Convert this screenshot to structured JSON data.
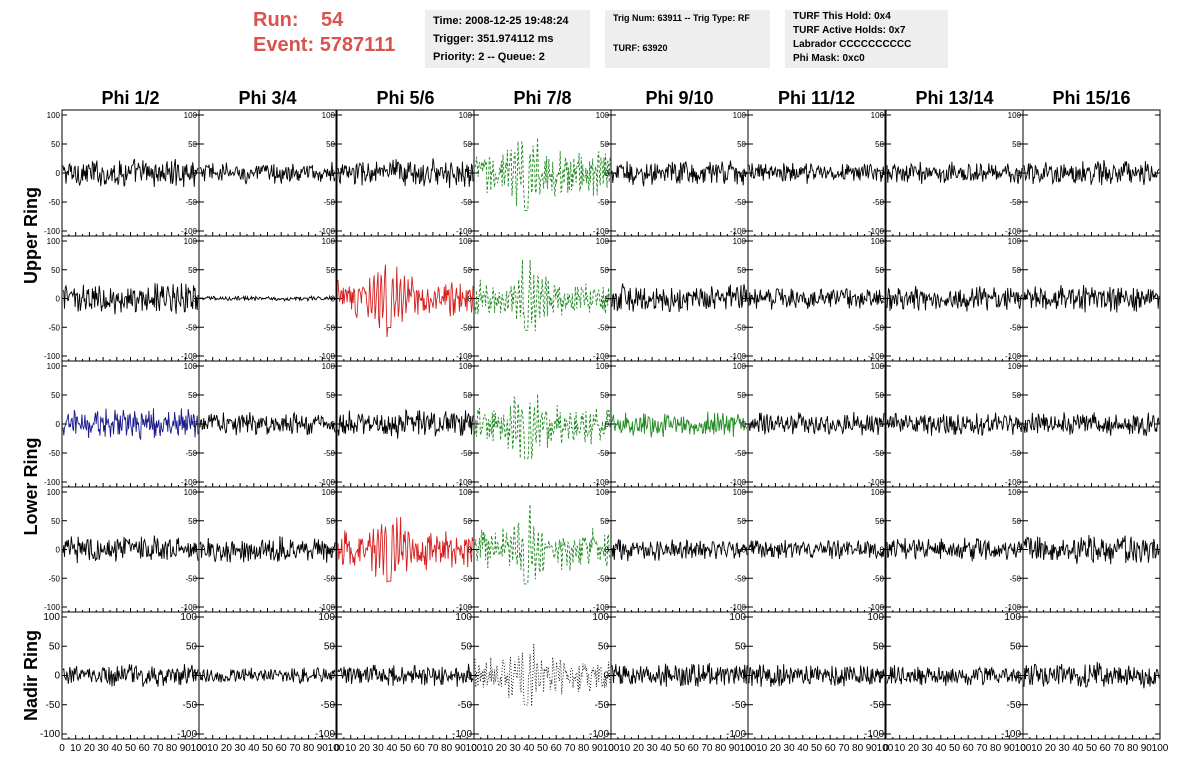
{
  "header": {
    "run_label": "Run:",
    "run_value": "54",
    "event_label": "Event:",
    "event_value": "5787111"
  },
  "info_boxes": {
    "time": "Time: 2008-12-25 19:48:24",
    "trigger": "Trigger: 351.974112 ms",
    "priority": "Priority: 2 -- Queue: 2",
    "trig_num": "Trig Num: 63911 -- Trig Type: RF",
    "turf": "TURF: 63920",
    "turf_hold": "TURF This Hold: 0x4",
    "turf_active": "TURF Active Holds: 0x7",
    "labrador": "Labrador CCCCCCCCCC",
    "phi_mask": "Phi Mask: 0xc0"
  },
  "chart_data": {
    "type": "line",
    "columns": [
      "Phi 1/2",
      "Phi 3/4",
      "Phi 5/6",
      "Phi 7/8",
      "Phi 9/10",
      "Phi 11/12",
      "Phi 13/14",
      "Phi 15/16"
    ],
    "row_groups": [
      {
        "label": "Upper Ring",
        "rows": [
          0,
          1
        ]
      },
      {
        "label": "Lower Ring",
        "rows": [
          2,
          3
        ]
      },
      {
        "label": "Nadir Ring",
        "rows": [
          4
        ]
      }
    ],
    "ylim": [
      -100,
      100
    ],
    "xlim": [
      0,
      100
    ],
    "y_ticks": [
      100,
      50,
      0,
      -50,
      -100
    ],
    "y_tick_labels": [
      "100",
      "50",
      "0",
      "-50",
      "-100"
    ],
    "x_ticks": [
      0,
      10,
      20,
      30,
      40,
      50,
      60,
      70,
      80,
      90,
      100
    ],
    "x_tick_labels": [
      "0",
      "10",
      "20",
      "30",
      "40",
      "50",
      "60",
      "70",
      "80",
      "90",
      "100"
    ],
    "trace_colors": {
      "black": "#000000",
      "green": "#228b22",
      "red": "#d62020",
      "blue": "#1a1a8c"
    },
    "panels": [
      {
        "row": 0,
        "col": 0,
        "color": "black",
        "amp": 18,
        "style": "solid",
        "shape": "noise"
      },
      {
        "row": 0,
        "col": 1,
        "color": "black",
        "amp": 14,
        "style": "solid",
        "shape": "noise"
      },
      {
        "row": 0,
        "col": 2,
        "color": "black",
        "amp": 18,
        "style": "solid",
        "shape": "noise"
      },
      {
        "row": 0,
        "col": 3,
        "color": "green",
        "amp": 28,
        "style": "dashed",
        "shape": "pulse"
      },
      {
        "row": 0,
        "col": 4,
        "color": "black",
        "amp": 16,
        "style": "solid",
        "shape": "noise"
      },
      {
        "row": 0,
        "col": 5,
        "color": "black",
        "amp": 13,
        "style": "solid",
        "shape": "noise"
      },
      {
        "row": 0,
        "col": 6,
        "color": "black",
        "amp": 14,
        "style": "solid",
        "shape": "noise"
      },
      {
        "row": 0,
        "col": 7,
        "color": "black",
        "amp": 16,
        "style": "solid",
        "shape": "noise"
      },
      {
        "row": 1,
        "col": 0,
        "color": "black",
        "amp": 20,
        "style": "solid",
        "shape": "noise"
      },
      {
        "row": 1,
        "col": 1,
        "color": "black",
        "amp": 3,
        "style": "solid",
        "shape": "noise"
      },
      {
        "row": 1,
        "col": 2,
        "color": "red",
        "amp": 22,
        "style": "solid",
        "shape": "pulse"
      },
      {
        "row": 1,
        "col": 3,
        "color": "green",
        "amp": 24,
        "style": "dashed",
        "shape": "pulse"
      },
      {
        "row": 1,
        "col": 4,
        "color": "black",
        "amp": 18,
        "style": "solid",
        "shape": "noise"
      },
      {
        "row": 1,
        "col": 5,
        "color": "black",
        "amp": 14,
        "style": "solid",
        "shape": "noise"
      },
      {
        "row": 1,
        "col": 6,
        "color": "black",
        "amp": 16,
        "style": "solid",
        "shape": "noise"
      },
      {
        "row": 1,
        "col": 7,
        "color": "black",
        "amp": 18,
        "style": "solid",
        "shape": "noise"
      },
      {
        "row": 2,
        "col": 0,
        "color": "blue",
        "amp": 20,
        "style": "solid",
        "shape": "noise"
      },
      {
        "row": 2,
        "col": 1,
        "color": "black",
        "amp": 14,
        "style": "solid",
        "shape": "noise"
      },
      {
        "row": 2,
        "col": 2,
        "color": "black",
        "amp": 18,
        "style": "solid",
        "shape": "noise"
      },
      {
        "row": 2,
        "col": 3,
        "color": "green",
        "amp": 26,
        "style": "dashed",
        "shape": "pulse"
      },
      {
        "row": 2,
        "col": 4,
        "color": "green",
        "amp": 16,
        "style": "solid",
        "shape": "noise"
      },
      {
        "row": 2,
        "col": 5,
        "color": "black",
        "amp": 14,
        "style": "solid",
        "shape": "noise"
      },
      {
        "row": 2,
        "col": 6,
        "color": "black",
        "amp": 14,
        "style": "solid",
        "shape": "noise"
      },
      {
        "row": 2,
        "col": 7,
        "color": "black",
        "amp": 15,
        "style": "solid",
        "shape": "noise"
      },
      {
        "row": 3,
        "col": 0,
        "color": "black",
        "amp": 18,
        "style": "solid",
        "shape": "noise"
      },
      {
        "row": 3,
        "col": 1,
        "color": "black",
        "amp": 16,
        "style": "solid",
        "shape": "noise"
      },
      {
        "row": 3,
        "col": 2,
        "color": "red",
        "amp": 24,
        "style": "solid",
        "shape": "pulse"
      },
      {
        "row": 3,
        "col": 3,
        "color": "green",
        "amp": 26,
        "style": "dashed",
        "shape": "pulse"
      },
      {
        "row": 3,
        "col": 4,
        "color": "black",
        "amp": 14,
        "style": "solid",
        "shape": "noise"
      },
      {
        "row": 3,
        "col": 5,
        "color": "black",
        "amp": 13,
        "style": "solid",
        "shape": "noise"
      },
      {
        "row": 3,
        "col": 6,
        "color": "black",
        "amp": 14,
        "style": "solid",
        "shape": "noise"
      },
      {
        "row": 3,
        "col": 7,
        "color": "black",
        "amp": 18,
        "style": "solid",
        "shape": "noise"
      },
      {
        "row": 4,
        "col": 0,
        "color": "black",
        "amp": 14,
        "style": "solid",
        "shape": "noise"
      },
      {
        "row": 4,
        "col": 1,
        "color": "black",
        "amp": 10,
        "style": "solid",
        "shape": "noise"
      },
      {
        "row": 4,
        "col": 2,
        "color": "black",
        "amp": 14,
        "style": "solid",
        "shape": "noise"
      },
      {
        "row": 4,
        "col": 3,
        "color": "black",
        "amp": 22,
        "style": "dotted",
        "shape": "pulse"
      },
      {
        "row": 4,
        "col": 4,
        "color": "black",
        "amp": 15,
        "style": "solid",
        "shape": "noise"
      },
      {
        "row": 4,
        "col": 5,
        "color": "black",
        "amp": 14,
        "style": "solid",
        "shape": "noise"
      },
      {
        "row": 4,
        "col": 6,
        "color": "black",
        "amp": 13,
        "style": "solid",
        "shape": "noise"
      },
      {
        "row": 4,
        "col": 7,
        "color": "black",
        "amp": 16,
        "style": "solid",
        "shape": "noise"
      }
    ]
  }
}
